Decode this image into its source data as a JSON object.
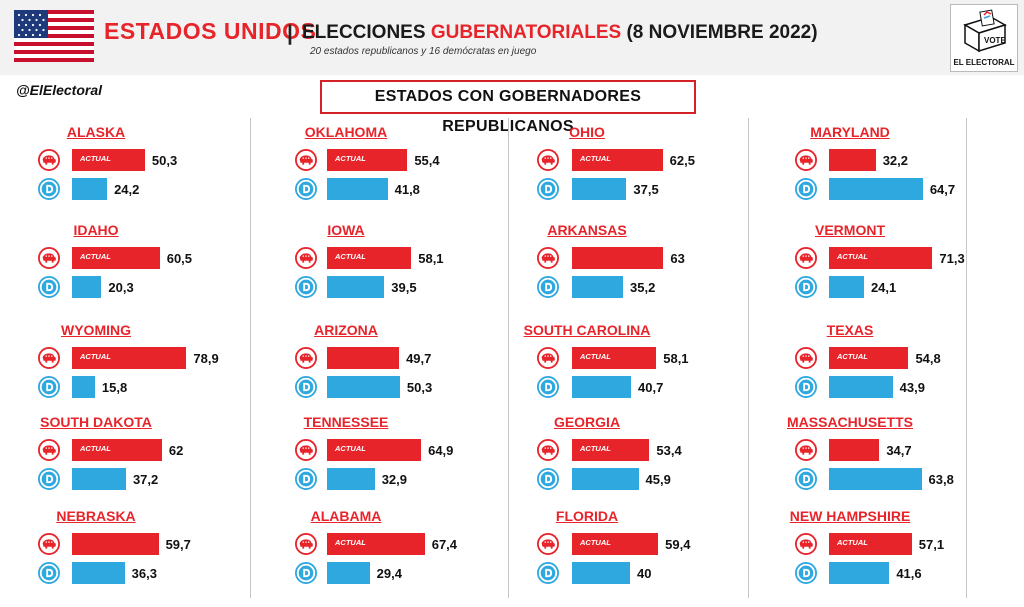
{
  "header": {
    "title_main": "ESTADOS UNIDOS",
    "title_sep": "|",
    "title_pre": "ELECCIONES ",
    "title_highlight": "GUBERNATORIALES",
    "title_post": " (8 NOVIEMBRE 2022)",
    "subtitle": "20 estados republicanos y 16 demócratas en juego",
    "logo_label": "EL ELECTORAL",
    "logo_vote": "VOTE"
  },
  "handle": "@ElElectoral",
  "section_title": "ESTADOS CON GOBERNADORES REPUBLICANOS",
  "actual_label": "ACTUAL",
  "colors": {
    "republican": "#e8242b",
    "democrat": "#2fa8e0"
  },
  "chart_data": {
    "type": "bar",
    "title": "ESTADOS CON GOBERNADORES REPUBLICANOS",
    "series": [
      {
        "name": "",
        "values": [
          50.3,
          60.5,
          78.9,
          62,
          59.7,
          55.4,
          58.1,
          49.7,
          64.9,
          67.4,
          62.5,
          63,
          58.1,
          53.4,
          59.4,
          32.2,
          71.3,
          54.8,
          34.7,
          57.1
        ]
      },
      {
        "name": "",
        "values": [
          24.2,
          20.3,
          15.8,
          37.2,
          36.3,
          41.8,
          39.5,
          50.3,
          32.9,
          29.4,
          37.5,
          35.2,
          40.7,
          45.9,
          40,
          64.7,
          24.1,
          43.9,
          63.8,
          41.6
        ]
      }
    ],
    "states": [
      {
        "name": "ALASKA",
        "rep": 50.3,
        "dem": 24.2,
        "rep_label": "50,3",
        "dem_label": "24,2",
        "actual": true
      },
      {
        "name": "IDAHO",
        "rep": 60.5,
        "dem": 20.3,
        "rep_label": "60,5",
        "dem_label": "20,3",
        "actual": true
      },
      {
        "name": "WYOMING",
        "rep": 78.9,
        "dem": 15.8,
        "rep_label": "78,9",
        "dem_label": "15,8",
        "actual": true
      },
      {
        "name": "SOUTH DAKOTA",
        "rep": 62,
        "dem": 37.2,
        "rep_label": "62",
        "dem_label": "37,2",
        "actual": true
      },
      {
        "name": "NEBRASKA",
        "rep": 59.7,
        "dem": 36.3,
        "rep_label": "59,7",
        "dem_label": "36,3",
        "actual": false
      },
      {
        "name": "OKLAHOMA",
        "rep": 55.4,
        "dem": 41.8,
        "rep_label": "55,4",
        "dem_label": "41,8",
        "actual": true
      },
      {
        "name": "IOWA",
        "rep": 58.1,
        "dem": 39.5,
        "rep_label": "58,1",
        "dem_label": "39,5",
        "actual": true
      },
      {
        "name": "ARIZONA",
        "rep": 49.7,
        "dem": 50.3,
        "rep_label": "49,7",
        "dem_label": "50,3",
        "actual": false
      },
      {
        "name": "TENNESSEE",
        "rep": 64.9,
        "dem": 32.9,
        "rep_label": "64,9",
        "dem_label": "32,9",
        "actual": true
      },
      {
        "name": "ALABAMA",
        "rep": 67.4,
        "dem": 29.4,
        "rep_label": "67,4",
        "dem_label": "29,4",
        "actual": true
      },
      {
        "name": "OHIO",
        "rep": 62.5,
        "dem": 37.5,
        "rep_label": "62,5",
        "dem_label": "37,5",
        "actual": true
      },
      {
        "name": "ARKANSAS",
        "rep": 63,
        "dem": 35.2,
        "rep_label": "63",
        "dem_label": "35,2",
        "actual": false
      },
      {
        "name": "SOUTH CAROLINA",
        "rep": 58.1,
        "dem": 40.7,
        "rep_label": "58,1",
        "dem_label": "40,7",
        "actual": true
      },
      {
        "name": "GEORGIA",
        "rep": 53.4,
        "dem": 45.9,
        "rep_label": "53,4",
        "dem_label": "45,9",
        "actual": true
      },
      {
        "name": "FLORIDA",
        "rep": 59.4,
        "dem": 40,
        "rep_label": "59,4",
        "dem_label": "40",
        "actual": true
      },
      {
        "name": "MARYLAND",
        "rep": 32.2,
        "dem": 64.7,
        "rep_label": "32,2",
        "dem_label": "64,7",
        "actual": false
      },
      {
        "name": "VERMONT",
        "rep": 71.3,
        "dem": 24.1,
        "rep_label": "71,3",
        "dem_label": "24,1",
        "actual": true
      },
      {
        "name": "TEXAS",
        "rep": 54.8,
        "dem": 43.9,
        "rep_label": "54,8",
        "dem_label": "43,9",
        "actual": true
      },
      {
        "name": "MASSACHUSETTS",
        "rep": 34.7,
        "dem": 63.8,
        "rep_label": "34,7",
        "dem_label": "63,8",
        "actual": false
      },
      {
        "name": "NEW HAMPSHIRE",
        "rep": 57.1,
        "dem": 41.6,
        "rep_label": "57,1",
        "dem_label": "41,6",
        "actual": true
      }
    ],
    "xlim": [
      0,
      100
    ],
    "grid": false,
    "legend": "none"
  }
}
